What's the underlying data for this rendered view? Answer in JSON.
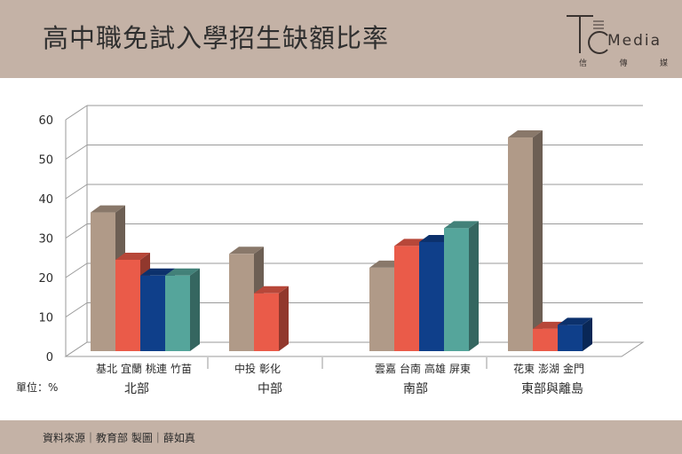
{
  "header": {
    "title": "高中職免試入學招生缺額比率",
    "logo": {
      "word": "Media",
      "sub": [
        "信",
        "傳",
        "媒"
      ]
    }
  },
  "footer": {
    "source": "資料來源｜教育部 製圖｜薛如真"
  },
  "unit_label": "單位：%",
  "colors": {
    "header_bg": "#c4b2a6",
    "series": [
      "#b09a88",
      "#ea5b49",
      "#0f3f8a",
      "#55a59b"
    ],
    "grid": "#9a9a9a"
  },
  "chart_data": {
    "type": "bar",
    "style": "3d-clustered-column",
    "ylim": [
      0,
      60
    ],
    "yticks": [
      0,
      10,
      20,
      30,
      40,
      50,
      60
    ],
    "grid": true,
    "groups": [
      {
        "name": "北部",
        "bars": [
          {
            "label": "基北",
            "value": 36.5
          },
          {
            "label": "宜蘭",
            "value": 24.5
          },
          {
            "label": "桃連",
            "value": 20.5
          },
          {
            "label": "竹苗",
            "value": 20.5
          }
        ]
      },
      {
        "name": "中部",
        "bars": [
          {
            "label": "中投",
            "value": 26
          },
          {
            "label": "彰化",
            "value": 16
          }
        ]
      },
      {
        "name": "南部",
        "bars": [
          {
            "label": "雲嘉",
            "value": 22.5
          },
          {
            "label": "台南",
            "value": 28
          },
          {
            "label": "高雄",
            "value": 29
          },
          {
            "label": "屏東",
            "value": 32.5
          }
        ]
      },
      {
        "name": "東部與離島",
        "bars": [
          {
            "label": "花東",
            "value": 55.5
          },
          {
            "label": "澎湖",
            "value": 7
          },
          {
            "label": "金門",
            "value": 8
          }
        ]
      }
    ]
  }
}
